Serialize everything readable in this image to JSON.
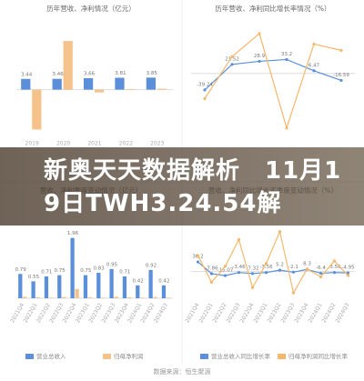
{
  "chart_data": [
    {
      "type": "bar",
      "title": "历年营收、净利情况（亿元）",
      "categories": [
        "2019",
        "2020",
        "2021",
        "2022",
        "2023"
      ],
      "series": [
        {
          "color": "#5b8fd9",
          "values": [
            3.44,
            3.46,
            3.66,
            3.81,
            3.85
          ],
          "labeled": true
        },
        {
          "color": "#f6c28b",
          "values": [
            -12.8,
            15.6,
            -0.9,
            0.2,
            0.3
          ]
        }
      ],
      "ylim": [
        -15,
        20
      ]
    },
    {
      "type": "line",
      "title": "历年营收、净利同比增长率情况（%）",
      "categories": [
        null,
        null,
        null,
        null,
        null,
        null
      ],
      "series": [
        {
          "color": "#5b8fd9",
          "values": [
            -39.24,
            21.52,
            28.9,
            33.2,
            6.47,
            -16.59
          ],
          "labeled": true
        },
        {
          "color": "#f5b86a",
          "values": [
            -60,
            40,
            95,
            -130,
            70,
            55
          ]
        }
      ],
      "ylim": [
        -150,
        110
      ]
    },
    {
      "type": "bar",
      "title": "营收、净利季度变动情况（亿元）",
      "categories": [
        "2021Q4",
        "2022Q1",
        "2022Q2",
        "2022Q3",
        "2022Q4",
        "2023Q1",
        "2023Q2",
        "2023Q3",
        "2023Q4",
        "2024Q1",
        "2024Q2",
        "2024Q3"
      ],
      "series": [
        {
          "name": "营业总收入",
          "color": "#5b8fd9",
          "values": [
            0.79,
            0.55,
            0.71,
            0.75,
            1.96,
            0.75,
            0.83,
            0.95,
            0.71,
            0.42,
            0.92,
            0.42
          ],
          "labeled": true
        },
        {
          "name": "归母净利润",
          "color": "#f6c28b",
          "values": [
            0.05,
            0.03,
            0.02,
            0.04,
            0.3,
            0.03,
            0.02,
            0.05,
            0.03,
            0.02,
            0.04,
            0.02
          ]
        }
      ],
      "ylim": [
        0,
        2.6
      ]
    },
    {
      "type": "line",
      "title": "营收、净利同比增长率季度变动情况（%）",
      "categories": [
        "2021Q4",
        "2022Q1",
        "2022Q2",
        "2022Q3",
        "2022Q4",
        "2023Q1",
        "2023Q2",
        "2023Q3",
        "2023Q4",
        "2024Q1",
        "2024Q2",
        "2024Q3"
      ],
      "series": [
        {
          "name": "营业总收入同比增长率",
          "color": "#5b8fd9",
          "values": [
            36.2,
            -7.86,
            -15.07,
            -3.46,
            -7.32,
            -3.56,
            5.2,
            -2.1,
            8.3,
            -6.4,
            -3.56,
            -4.95
          ],
          "labeled": true
        },
        {
          "name": "归母净利润同比增长率",
          "color": "#f5b86a",
          "values": [
            60,
            -40,
            20,
            120,
            -60,
            30,
            150,
            -80,
            10,
            -20,
            40,
            -15
          ]
        }
      ],
      "ylim": [
        -100,
        200
      ]
    }
  ],
  "banner": {
    "title": "新奥天天数据解析　11月19日TWH3.24.54解"
  },
  "footer": {
    "source": "数据来源：恒生聚源"
  }
}
